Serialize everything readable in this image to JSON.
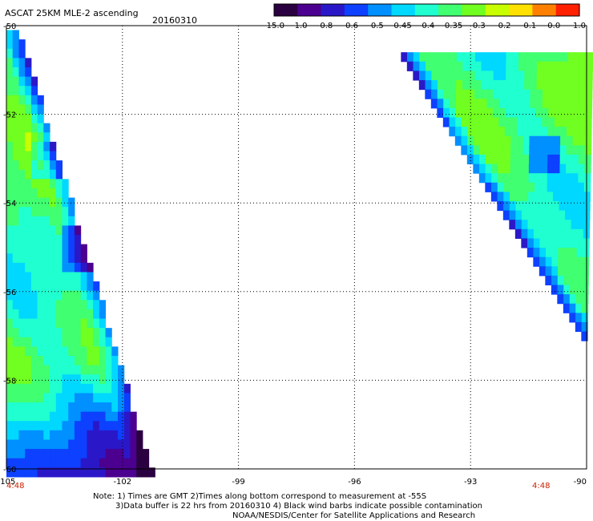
{
  "chart_data": {
    "type": "heatmap",
    "title": "ASCAT 25KM MLE-2 ascending",
    "date": "20160310",
    "x_axis": {
      "ticks": [
        "-105",
        "-102",
        "-99",
        "-96",
        "-93",
        "-90"
      ],
      "range": [
        -105,
        -90
      ]
    },
    "y_axis": {
      "ticks": [
        "-50",
        "-52",
        "-54",
        "-56",
        "-58",
        "-60"
      ],
      "range": [
        -60,
        -50
      ]
    },
    "colorbar": {
      "labels": [
        "-15.0",
        "-1.0",
        "-0.8",
        "-0.6",
        "-0.5",
        "-0.45",
        "-0.4",
        "-0.35",
        "-0.3",
        "-0.2",
        "-0.1",
        "0.0",
        "1.0"
      ],
      "colors": [
        "#2a0040",
        "#4b0090",
        "#2a18c8",
        "#0d40ff",
        "#0090ff",
        "#00d8ff",
        "#20ffd0",
        "#40ff70",
        "#70ff20",
        "#c8ff00",
        "#ffe000",
        "#ff8000",
        "#ff2000"
      ]
    },
    "time_labels": {
      "left": "4:48",
      "right": "4:48"
    },
    "grid": "dotted",
    "swaths": [
      {
        "side": "left",
        "lon_range": [
          -105,
          -101.3
        ],
        "lat_range": [
          -60,
          -50.1
        ]
      },
      {
        "side": "right",
        "lon_range": [
          -94.8,
          -90
        ],
        "lat_range": [
          -57.1,
          -50.6
        ]
      }
    ]
  },
  "notes": [
    "Note: 1) Times are GMT 2)Times along bottom correspond to measurement at -55S",
    "3)Data buffer is 22 hrs from 20160310 4) Black wind barbs indicate possible contamination",
    "NOAA/NESDIS/Center for Satellite Applications and Research"
  ]
}
